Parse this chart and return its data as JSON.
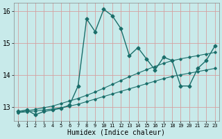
{
  "xlabel": "Humidex (Indice chaleur)",
  "xlim": [
    -0.5,
    23.5
  ],
  "ylim": [
    12.55,
    16.25
  ],
  "yticks": [
    13,
    14,
    15,
    16
  ],
  "xticks": [
    0,
    1,
    2,
    3,
    4,
    5,
    6,
    7,
    8,
    9,
    10,
    11,
    12,
    13,
    14,
    15,
    16,
    17,
    18,
    19,
    20,
    21,
    22,
    23
  ],
  "bg_color": "#c8eaea",
  "grid_color": "#d4a0a0",
  "line_color": "#1a6e6a",
  "curve1_x": [
    0,
    1,
    2,
    3,
    4,
    5,
    6,
    7,
    8,
    9,
    10,
    11,
    12,
    13,
    14,
    15,
    16,
    17,
    18,
    19,
    20,
    21,
    22,
    23
  ],
  "curve1_y": [
    12.85,
    12.9,
    12.75,
    12.85,
    12.9,
    12.95,
    13.05,
    13.65,
    15.75,
    15.35,
    16.05,
    15.85,
    15.45,
    14.6,
    14.85,
    14.5,
    14.15,
    14.55,
    14.45,
    13.65,
    13.65,
    14.2,
    14.45,
    14.9
  ],
  "curve2_x": [
    0,
    1,
    2,
    3,
    4,
    5,
    6,
    7,
    8,
    9,
    10,
    11,
    12,
    13,
    14,
    15,
    16,
    17,
    18,
    19,
    20,
    21,
    22,
    23
  ],
  "curve2_y": [
    12.82,
    12.84,
    12.87,
    12.9,
    12.93,
    12.97,
    13.02,
    13.08,
    13.16,
    13.24,
    13.32,
    13.4,
    13.48,
    13.56,
    13.64,
    13.72,
    13.8,
    13.88,
    13.95,
    14.0,
    14.05,
    14.1,
    14.15,
    14.2
  ],
  "curve3_x": [
    0,
    1,
    2,
    3,
    4,
    5,
    6,
    7,
    8,
    9,
    10,
    11,
    12,
    13,
    14,
    15,
    16,
    17,
    18,
    19,
    20,
    21,
    22,
    23
  ],
  "curve3_y": [
    12.82,
    12.87,
    12.92,
    12.97,
    13.02,
    13.1,
    13.18,
    13.26,
    13.36,
    13.46,
    13.58,
    13.7,
    13.82,
    13.94,
    14.05,
    14.16,
    14.26,
    14.36,
    14.44,
    14.5,
    14.55,
    14.6,
    14.65,
    14.7
  ]
}
